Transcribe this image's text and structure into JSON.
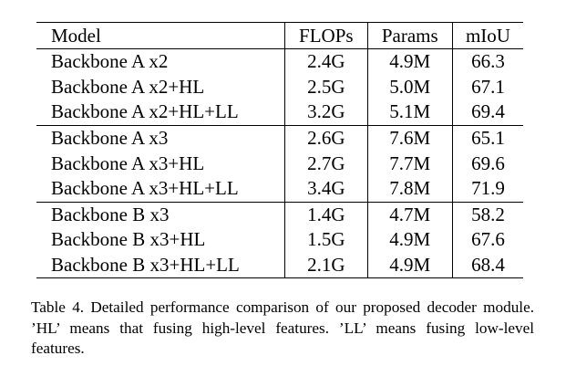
{
  "table": {
    "headers": [
      "Model",
      "FLOPs",
      "Params",
      "mIoU"
    ],
    "groups": [
      {
        "rows": [
          [
            "Backbone A x2",
            "2.4G",
            "4.9M",
            "66.3"
          ],
          [
            "Backbone A x2+HL",
            "2.5G",
            "5.0M",
            "67.1"
          ],
          [
            "Backbone A x2+HL+LL",
            "3.2G",
            "5.1M",
            "69.4"
          ]
        ]
      },
      {
        "rows": [
          [
            "Backbone A x3",
            "2.6G",
            "7.6M",
            "65.1"
          ],
          [
            "Backbone A x3+HL",
            "2.7G",
            "7.7M",
            "69.6"
          ],
          [
            "Backbone A x3+HL+LL",
            "3.4G",
            "7.8M",
            "71.9"
          ]
        ]
      },
      {
        "rows": [
          [
            "Backbone B x3",
            "1.4G",
            "4.7M",
            "58.2"
          ],
          [
            "Backbone B x3+HL",
            "1.5G",
            "4.9M",
            "67.6"
          ],
          [
            "Backbone B x3+HL+LL",
            "2.1G",
            "4.9M",
            "68.4"
          ]
        ]
      }
    ]
  },
  "caption": "Table 4. Detailed performance comparison of our proposed decoder module. ’HL’ means that fusing high-level features. ’LL’ means fusing low-level features."
}
